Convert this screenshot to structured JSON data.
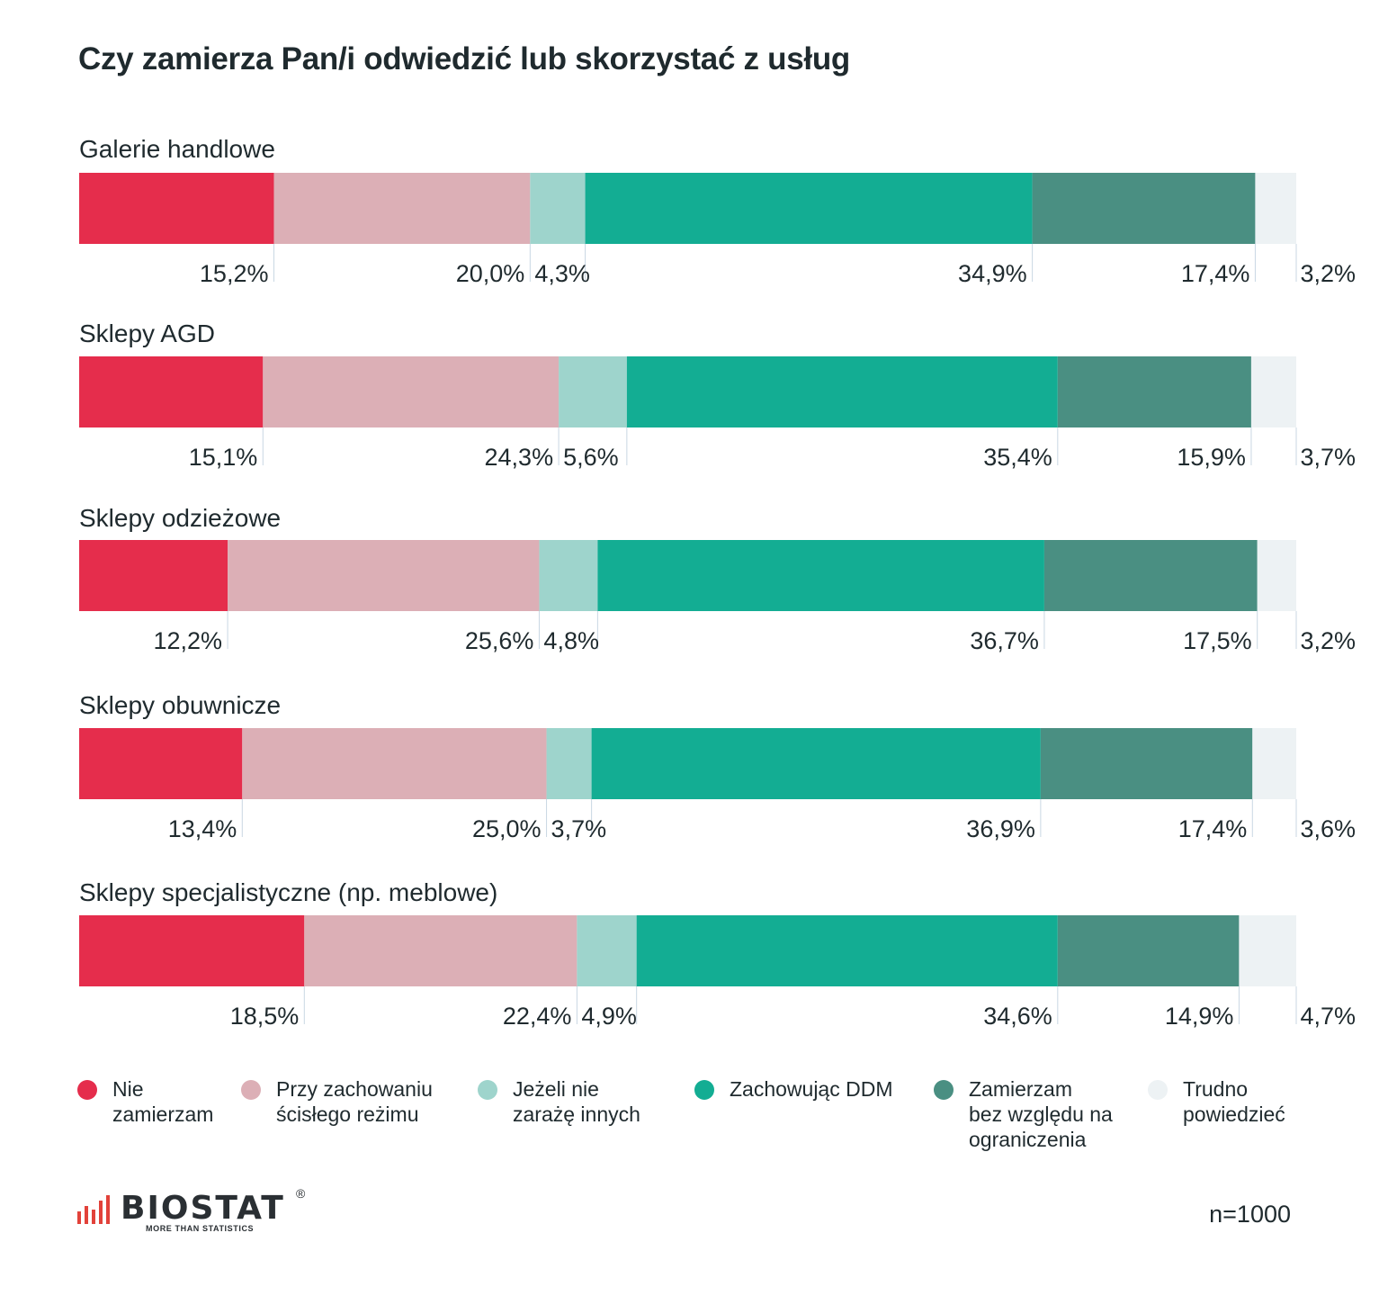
{
  "title": "Czy zamierza Pan/i odwiedzić lub skorzystać z usług",
  "chart_data": {
    "type": "bar",
    "orientation": "horizontal",
    "stacked": true,
    "normalized": true,
    "categories": [
      "Galerie handlowe",
      "Sklepy AGD",
      "Sklepy odzieżowe",
      "Sklepy obuwnicze",
      "Sklepy specjalistyczne (np. meblowe)"
    ],
    "series": [
      {
        "name": "Nie zamierzam",
        "color": "#e52d4c",
        "values": [
          15.2,
          15.1,
          12.2,
          13.4,
          18.5
        ],
        "labels": [
          "15,2%",
          "15,1%",
          "12,2%",
          "13,4%",
          "18,5%"
        ]
      },
      {
        "name": "Przy zachowaniu ścisłego reżimu",
        "color": "#dcafb6",
        "values": [
          20.0,
          24.3,
          25.6,
          25.0,
          22.4
        ],
        "labels": [
          "20,0%",
          "24,3%",
          "25,6%",
          "25,0%",
          "22,4%"
        ]
      },
      {
        "name": "Jeżeli nie zarażę innych",
        "color": "#9ed4cc",
        "values": [
          4.3,
          5.6,
          4.8,
          3.7,
          4.9
        ],
        "labels": [
          "4,3%",
          "5,6%",
          "4,8%",
          "3,7%",
          "4,9%"
        ]
      },
      {
        "name": "Zachowując DDM",
        "color": "#13ad93",
        "values": [
          34.9,
          35.4,
          36.7,
          36.9,
          34.6
        ],
        "labels": [
          "34,9%",
          "35,4%",
          "36,7%",
          "36,9%",
          "34,6%"
        ]
      },
      {
        "name": "Zamierzam bez względu na ograniczenia",
        "color": "#4a8f82",
        "values": [
          17.4,
          15.9,
          17.5,
          17.4,
          14.9
        ],
        "labels": [
          "17,4%",
          "15,9%",
          "17,5%",
          "17,4%",
          "14,9%"
        ]
      },
      {
        "name": "Trudno powiedzieć",
        "color": "#edf2f4",
        "values": [
          3.2,
          3.7,
          3.2,
          3.6,
          4.7
        ],
        "labels": [
          "3,2%",
          "3,7%",
          "3,2%",
          "3,6%",
          "4,7%"
        ]
      }
    ],
    "xlim": [
      0,
      100
    ],
    "legend_position": "bottom"
  },
  "legend": {
    "items": [
      {
        "text": "Nie\nzamierzam",
        "color": "#e52d4c"
      },
      {
        "text": "Przy zachowaniu\nścisłego reżimu",
        "color": "#dcafb6"
      },
      {
        "text": "Jeżeli nie\nzarażę innych",
        "color": "#9ed4cc"
      },
      {
        "text": "Zachowując DDM",
        "color": "#13ad93"
      },
      {
        "text": "Zamierzam\nbez względu na\nograniczenia",
        "color": "#4a8f82"
      },
      {
        "text": "Trudno\npowiedzieć",
        "color": "#edf2f4"
      }
    ]
  },
  "footer": {
    "logo_text": "BIOSTAT",
    "logo_reg": "®",
    "logo_tagline": "MORE THAN STATISTICS",
    "sample": "n=1000"
  },
  "colors": {
    "logo_accent": "#e2423a",
    "text": "#1f2a2e",
    "tick_line": "#c9d7e3"
  }
}
